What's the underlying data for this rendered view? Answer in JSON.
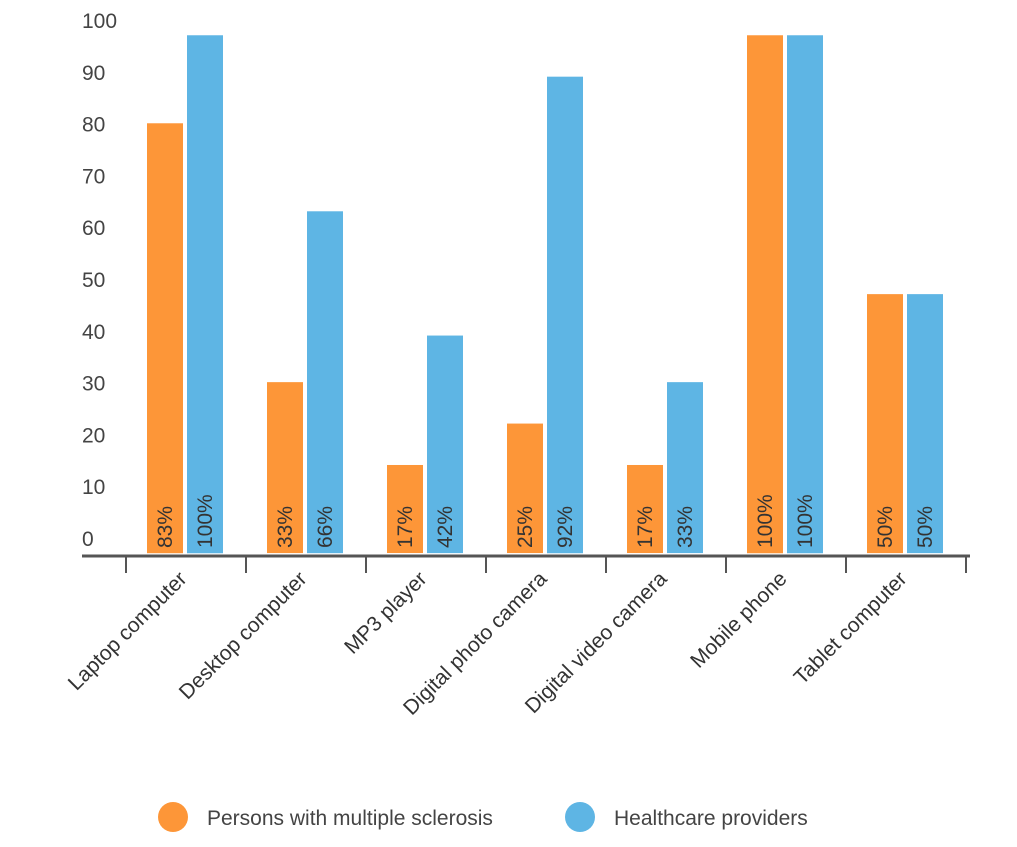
{
  "chart_data": {
    "type": "bar",
    "title": "",
    "xlabel": "",
    "ylabel": "",
    "ylim": [
      0,
      100
    ],
    "yticks": [
      "0",
      "10",
      "20",
      "30",
      "40",
      "50",
      "60",
      "70",
      "80",
      "90",
      "100"
    ],
    "grid": false,
    "legend_placement": "bottom",
    "categories": [
      "Laptop computer",
      "Desktop computer",
      "MP3 player",
      "Digital photo camera",
      "Digital video camera",
      "Mobile phone",
      "Tablet computer"
    ],
    "series": [
      {
        "name": "Persons with multiple sclerosis",
        "color": "#fd9638",
        "values": [
          83,
          33,
          17,
          25,
          17,
          100,
          50
        ],
        "labels": [
          "83%",
          "33%",
          "17%",
          "25%",
          "17%",
          "100%",
          "50%"
        ]
      },
      {
        "name": "Healthcare providers",
        "color": "#5eb5e4",
        "values": [
          100,
          66,
          42,
          92,
          33,
          100,
          50
        ],
        "labels": [
          "100%",
          "66%",
          "42%",
          "92%",
          "33%",
          "100%",
          "50%"
        ]
      }
    ]
  }
}
